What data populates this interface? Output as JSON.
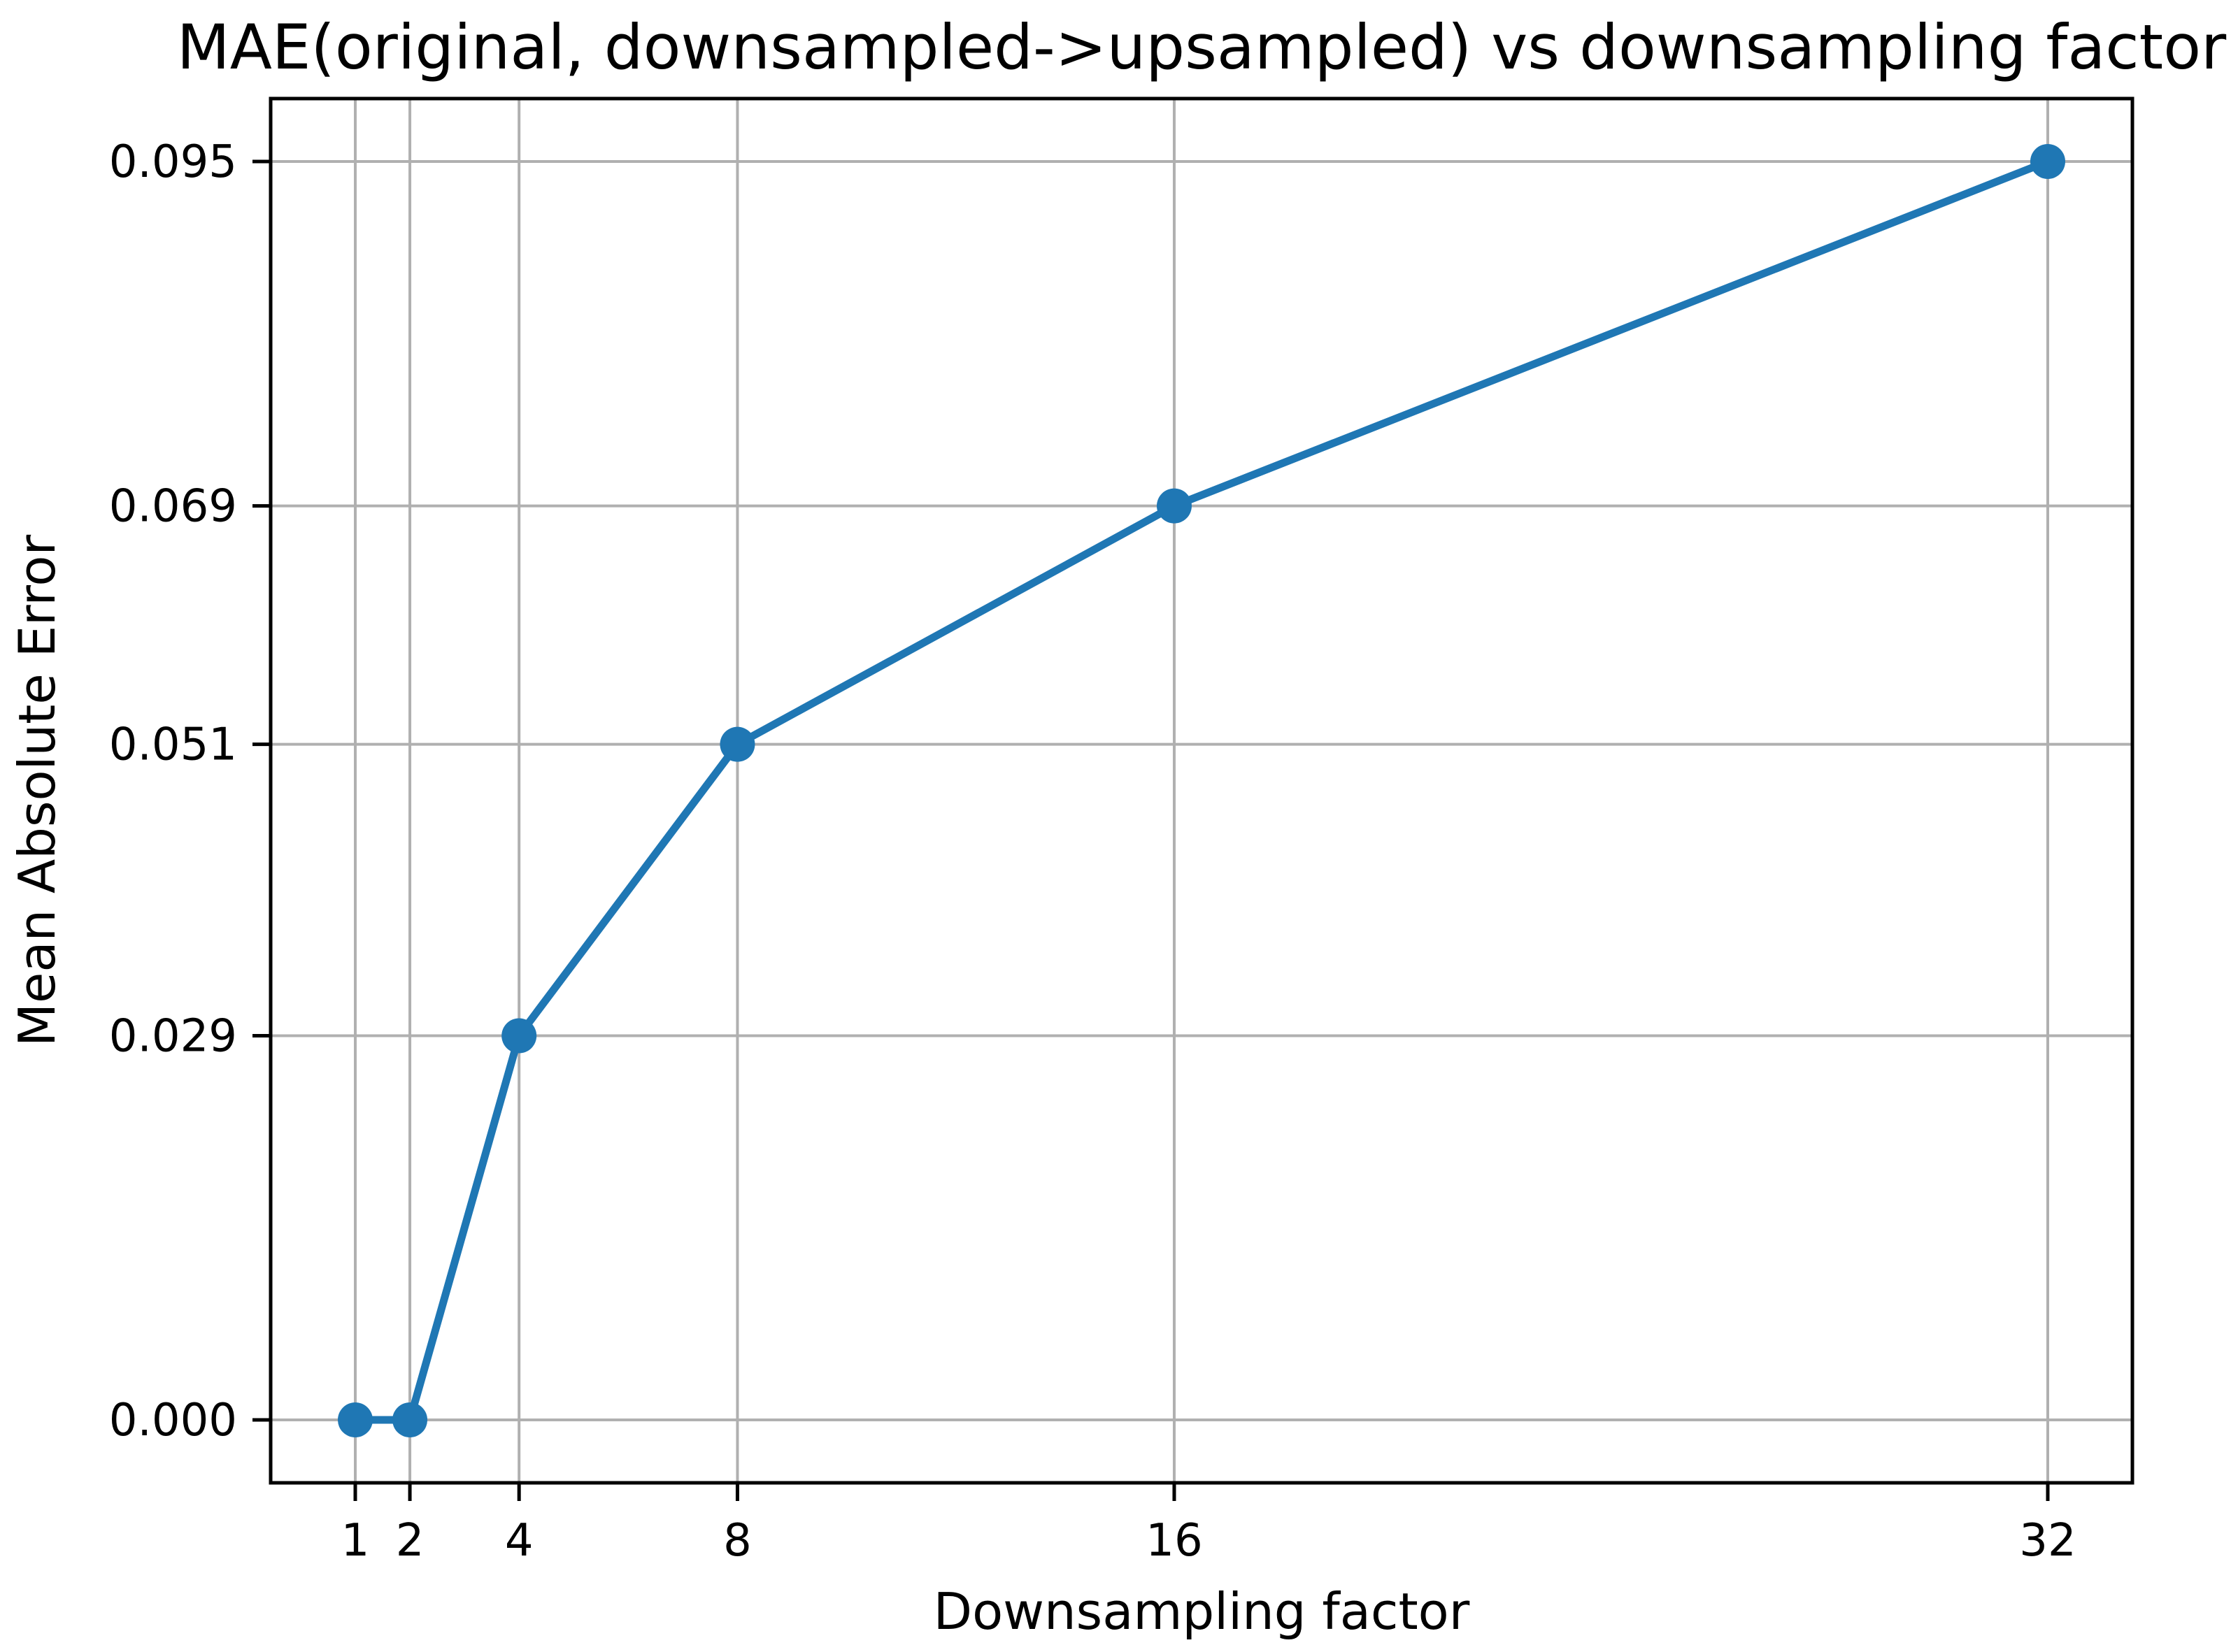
{
  "chart_data": {
    "type": "line",
    "title": "MAE(original, downsampled->upsampled) vs downsampling factor",
    "xlabel": "Downsampling factor",
    "ylabel": "Mean Absolute Error",
    "x": [
      1,
      2,
      4,
      8,
      16,
      32
    ],
    "y": [
      0.0,
      0.0,
      0.029,
      0.051,
      0.069,
      0.095
    ],
    "series": [
      {
        "name": "MAE",
        "x": [
          1,
          2,
          4,
          8,
          16,
          32
        ],
        "y": [
          0.0,
          0.0,
          0.029,
          0.051,
          0.069,
          0.095
        ]
      }
    ],
    "xticks": [
      1,
      2,
      4,
      8,
      16,
      32
    ],
    "xtick_labels": [
      "1",
      "2",
      "4",
      "8",
      "16",
      "32"
    ],
    "yticks": [
      0.0,
      0.029,
      0.051,
      0.069,
      0.095
    ],
    "ytick_labels": [
      "0.000",
      "0.029",
      "0.051",
      "0.069",
      "0.095"
    ],
    "xlim": [
      -0.55,
      33.55
    ],
    "ylim": [
      -0.00475,
      0.09975
    ],
    "grid": true,
    "legend_position": "none",
    "line_color": "#1f77b4",
    "marker": "o",
    "marker_color": "#1f77b4",
    "grid_color": "#b0b0b0",
    "spine_color": "#000000",
    "background_color": "#ffffff"
  }
}
